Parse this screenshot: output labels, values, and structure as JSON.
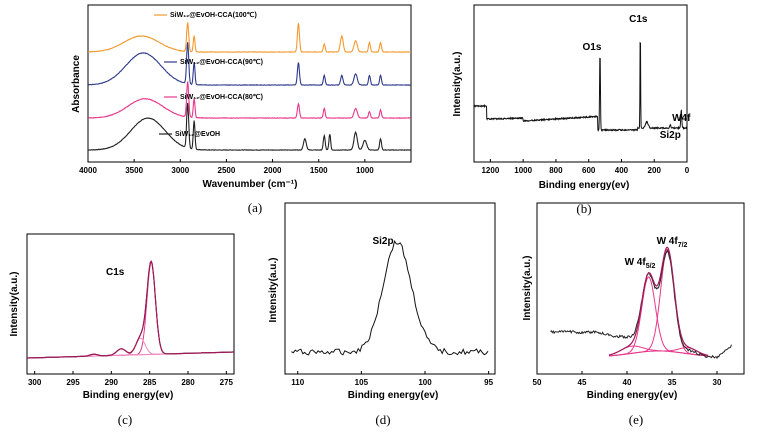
{
  "chart_data": [
    {
      "id": "a",
      "type": "line",
      "caption": "(a)",
      "xlabel": "Wavenumber (cm⁻¹)",
      "ylabel": "Absorbance",
      "xlim": [
        4000,
        500
      ],
      "xticks": [
        4000,
        3500,
        3000,
        2500,
        2000,
        1500,
        1000
      ],
      "y_ticks_shown": false,
      "series": [
        {
          "name": "SiW₁₂@EvOH",
          "color": "#222222",
          "offset": 0,
          "peaks": [
            [
              3350,
              370,
              1.0
            ],
            [
              2920,
              22,
              1.4
            ],
            [
              2850,
              18,
              0.9
            ],
            [
              1650,
              30,
              0.35
            ],
            [
              1440,
              20,
              0.45
            ],
            [
              1380,
              18,
              0.5
            ],
            [
              1100,
              35,
              0.55
            ],
            [
              1000,
              40,
              0.3
            ],
            [
              830,
              20,
              0.35
            ]
          ]
        },
        {
          "name": "SiW₁₂@EvOH-CCA(80℃)",
          "color": "#e8378b",
          "offset": 1,
          "peaks": [
            [
              3380,
              380,
              0.6
            ],
            [
              2920,
              22,
              1.1
            ],
            [
              2850,
              18,
              0.6
            ],
            [
              1720,
              22,
              0.45
            ],
            [
              1440,
              20,
              0.3
            ],
            [
              1100,
              35,
              0.3
            ],
            [
              950,
              20,
              0.2
            ],
            [
              830,
              20,
              0.25
            ]
          ]
        },
        {
          "name": "SiW₁₂@EvOH-CCA(90℃)",
          "color": "#2e3a8c",
          "offset": 2,
          "peaks": [
            [
              3400,
              380,
              1.0
            ],
            [
              2920,
              22,
              1.3
            ],
            [
              2850,
              18,
              0.7
            ],
            [
              1720,
              22,
              0.7
            ],
            [
              1440,
              20,
              0.3
            ],
            [
              1250,
              25,
              0.3
            ],
            [
              1100,
              35,
              0.35
            ],
            [
              950,
              20,
              0.3
            ],
            [
              830,
              20,
              0.3
            ]
          ]
        },
        {
          "name": "SiW₁₂@EvOH-CCA(100℃)",
          "color": "#f39a2f",
          "offset": 3,
          "peaks": [
            [
              3420,
              380,
              0.5
            ],
            [
              2920,
              22,
              0.9
            ],
            [
              2850,
              18,
              0.5
            ],
            [
              1720,
              22,
              0.9
            ],
            [
              1440,
              20,
              0.25
            ],
            [
              1250,
              30,
              0.5
            ],
            [
              1100,
              35,
              0.35
            ],
            [
              950,
              20,
              0.3
            ],
            [
              830,
              20,
              0.3
            ]
          ]
        }
      ],
      "legend_placement": "labels above each curve"
    },
    {
      "id": "b",
      "type": "line",
      "caption": "(b)",
      "xlabel": "Binding energy(ev)",
      "ylabel": "Intensity(a.u.)",
      "xlim": [
        1300,
        0
      ],
      "xticks": [
        1200,
        1000,
        800,
        600,
        400,
        200,
        0
      ],
      "y_ticks_shown": false,
      "annotations": [
        {
          "text": "O1s",
          "x": 531
        },
        {
          "text": "C1s",
          "x": 285
        },
        {
          "text": "W4f",
          "x": 35
        },
        {
          "text": "Si2p",
          "x": 102
        }
      ]
    },
    {
      "id": "c",
      "type": "line",
      "caption": "(c)",
      "xlabel": "Binding energy(ev)",
      "ylabel": "Intensity(a.u.)",
      "xlim": [
        301,
        274
      ],
      "xticks": [
        300,
        295,
        290,
        285,
        280,
        275
      ],
      "y_ticks_shown": false,
      "annotations": [
        {
          "text": "C1s",
          "x": 289.5
        }
      ],
      "components": [
        {
          "center": 284.8,
          "width": 0.55,
          "amp": 1.0
        },
        {
          "center": 286.2,
          "width": 0.6,
          "amp": 0.18
        },
        {
          "center": 288.7,
          "width": 0.6,
          "amp": 0.07
        },
        {
          "center": 292.3,
          "width": 0.5,
          "amp": 0.02
        }
      ]
    },
    {
      "id": "d",
      "type": "line",
      "caption": "(d)",
      "xlabel": "Binding energy(ev)",
      "ylabel": "Intensity(a.u.)",
      "xlim": [
        111,
        94.5
      ],
      "xticks": [
        110,
        105,
        100,
        95
      ],
      "y_ticks_shown": false,
      "annotations": [
        {
          "text": "Si2p",
          "x": 103.3
        }
      ],
      "peak": {
        "center": 102.2,
        "width": 1.1,
        "amp": 1.0
      }
    },
    {
      "id": "e",
      "type": "line",
      "caption": "(e)",
      "xlabel": "Binding energy(ev)",
      "ylabel": "Intensity(a.u.)",
      "xlim": [
        50,
        27
      ],
      "xticks": [
        50,
        45,
        40,
        35,
        30
      ],
      "y_ticks_shown": false,
      "annotations": [
        {
          "text": "W 4f",
          "sub": "5/2",
          "x": 39
        },
        {
          "text": "W 4f",
          "sub": "7/2",
          "x": 35
        }
      ],
      "components": [
        {
          "center": 37.6,
          "width": 0.75,
          "amp": 0.62
        },
        {
          "center": 35.5,
          "width": 0.75,
          "amp": 0.85
        },
        {
          "center": 39.5,
          "width": 1.2,
          "amp": 0.06
        },
        {
          "center": 33.2,
          "width": 1.0,
          "amp": 0.05
        }
      ]
    }
  ]
}
